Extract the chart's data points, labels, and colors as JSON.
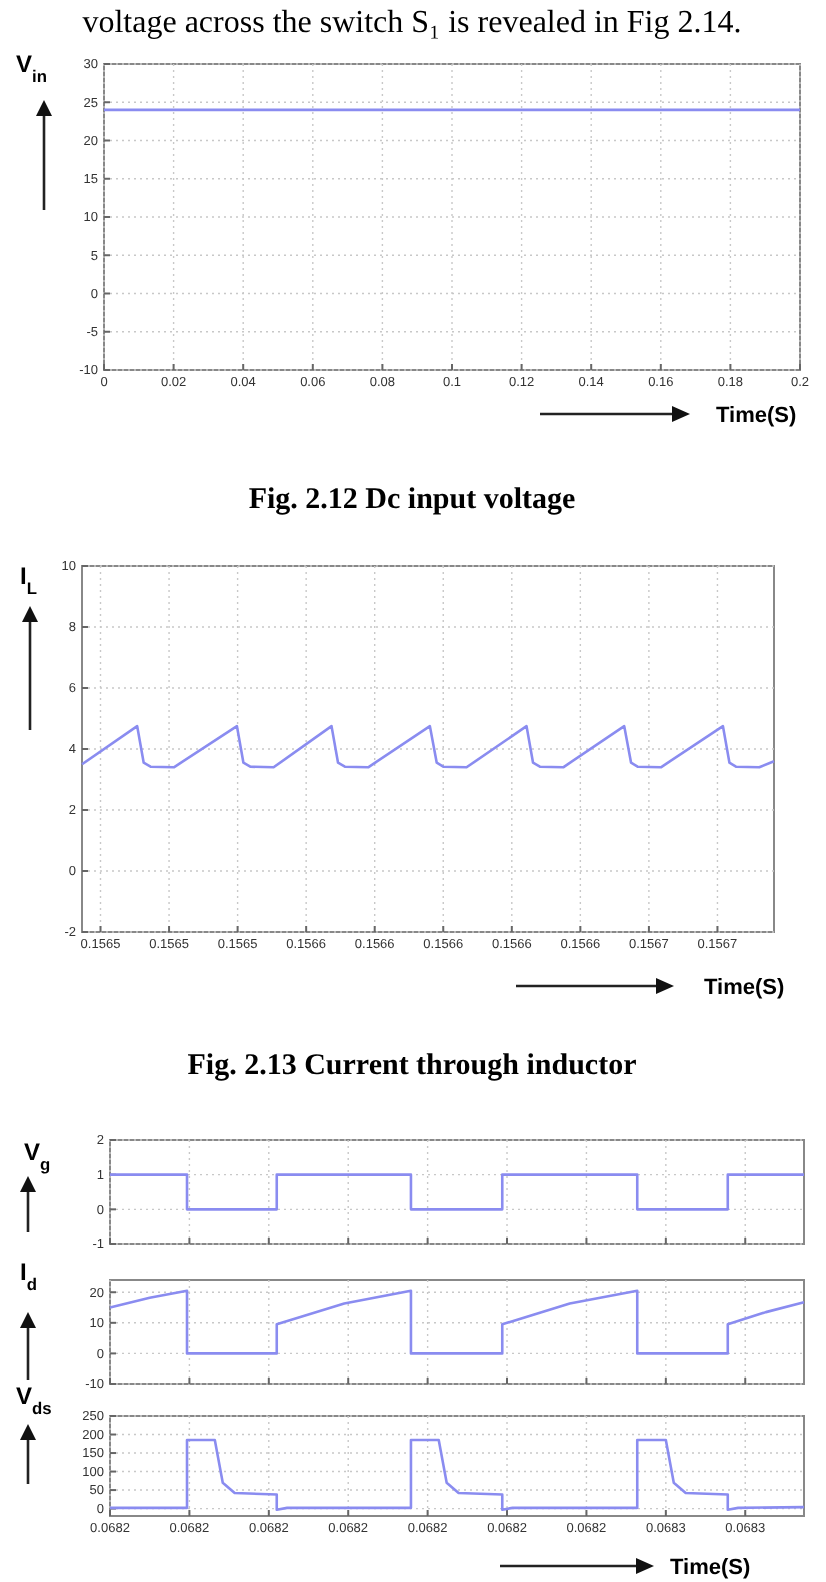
{
  "chart_data": [
    {
      "type": "line",
      "ylabel": "V$_{in}$",
      "xlabel": "Time(S)",
      "annotations": [
        "voltage across the switch S₁ is revealed in Fig 2.14.",
        "Fig. 2.12 Dc input voltage"
      ],
      "x": [
        0,
        0.2
      ],
      "values": [
        24,
        24
      ],
      "color": "#8a8cf0",
      "xlim": [
        0,
        0.2
      ],
      "ylim": [
        -10,
        30
      ],
      "xticks": [
        0,
        0.02,
        0.04,
        0.06,
        0.08,
        0.1,
        0.12,
        0.14,
        0.16,
        0.18,
        0.2
      ],
      "yticks": [
        -10,
        -5,
        0,
        5,
        10,
        15,
        20,
        25,
        30
      ],
      "grid": true
    },
    {
      "type": "line",
      "ylabel": "I$_{L}$",
      "xlabel": "Time(S)",
      "annotations": [
        "Fig. 2.13 Current through inductor"
      ],
      "x": [
        0.1564846,
        0.1565007,
        0.1565026,
        0.1565046,
        0.1565114,
        0.1565298,
        0.1565317,
        0.1565337,
        0.1565405,
        0.1565574,
        0.1565593,
        0.1565613,
        0.1565681,
        0.1565861,
        0.1565881,
        0.15659,
        0.1565968,
        0.1566143,
        0.1566162,
        0.1566182,
        0.156625,
        0.1566428,
        0.1566448,
        0.1566467,
        0.1566535,
        0.1566716,
        0.1566735,
        0.1566754,
        0.1566822,
        0.1566865
      ],
      "values": [
        3.5,
        4.75,
        3.55,
        3.42,
        3.4,
        4.75,
        3.55,
        3.42,
        3.4,
        4.75,
        3.55,
        3.42,
        3.4,
        4.75,
        3.55,
        3.42,
        3.4,
        4.75,
        3.55,
        3.42,
        3.4,
        4.75,
        3.55,
        3.42,
        3.4,
        4.75,
        3.55,
        3.42,
        3.4,
        3.6
      ],
      "color": "#8a8cf0",
      "xlim": [
        0.1564846,
        0.1566865
      ],
      "ylim": [
        -2,
        10
      ],
      "xticks": [
        {
          "value": 0.15649,
          "label": "0.1565"
        },
        {
          "value": 0.15651,
          "label": "0.1565"
        },
        {
          "value": 0.15653,
          "label": "0.1565"
        },
        {
          "value": 0.15655,
          "label": "0.1566"
        },
        {
          "value": 0.15657,
          "label": "0.1566"
        },
        {
          "value": 0.15659,
          "label": "0.1566"
        },
        {
          "value": 0.15661,
          "label": "0.1566"
        },
        {
          "value": 0.15663,
          "label": "0.1566"
        },
        {
          "value": 0.15665,
          "label": "0.1567"
        },
        {
          "value": 0.15667,
          "label": "0.1567"
        }
      ],
      "yticks": [
        -2,
        0,
        2,
        4,
        6,
        8,
        10
      ],
      "grid": true
    },
    {
      "type": "line",
      "ylabel": "V$_{g}$",
      "tick_labels": "y",
      "x": [
        0.06818,
        0.0681897,
        0.0681897,
        0.068201,
        0.068201,
        0.0682179,
        0.0682179,
        0.0682294,
        0.0682294,
        0.0682464,
        0.0682464,
        0.0682578,
        0.0682578,
        0.0682674
      ],
      "values": [
        1,
        1,
        0,
        0,
        1,
        1,
        0,
        0,
        1,
        1,
        0,
        0,
        1,
        1
      ],
      "color": "#8a8cf0",
      "xlim": [
        0.06818,
        0.0682674
      ],
      "ylim": [
        -1,
        2
      ],
      "xticks": [
        0.06818,
        0.06819,
        0.0682,
        0.06821,
        0.06822,
        0.06823,
        0.06824,
        0.06825,
        0.06826
      ],
      "yticks": [
        -1,
        0,
        1,
        2
      ],
      "grid": true
    },
    {
      "type": "line",
      "ylabel": "I$_{d}$",
      "tick_labels": "y",
      "x": [
        0.06818,
        0.068185,
        0.0681897,
        0.0681897,
        0.068201,
        0.068201,
        0.0682095,
        0.0682179,
        0.0682179,
        0.0682294,
        0.0682294,
        0.0682379,
        0.0682464,
        0.0682464,
        0.0682578,
        0.0682578,
        0.0682626,
        0.0682674
      ],
      "values": [
        15,
        18.2,
        20.5,
        0,
        0,
        9.5,
        16.3,
        20.5,
        0,
        0,
        9.5,
        16.3,
        20.5,
        0,
        0,
        9.5,
        13.5,
        16.7
      ],
      "color": "#8a8cf0",
      "xlim": [
        0.06818,
        0.0682674
      ],
      "ylim": [
        -10,
        24
      ],
      "xticks": [
        0.06818,
        0.06819,
        0.0682,
        0.06821,
        0.06822,
        0.06823,
        0.06824,
        0.06825,
        0.06826
      ],
      "yticks": [
        -10,
        0,
        10,
        20
      ],
      "grid": true
    },
    {
      "type": "line",
      "ylabel": "V$_{ds}$",
      "xlabel": "Time(S)",
      "x": [
        0.06818,
        0.0681897,
        0.0681897,
        0.0681932,
        0.0681942,
        0.0681957,
        0.068201,
        0.068201,
        0.0682023,
        0.0682179,
        0.0682179,
        0.0682214,
        0.0682224,
        0.0682239,
        0.0682294,
        0.0682294,
        0.0682307,
        0.0682464,
        0.0682464,
        0.06825,
        0.068251,
        0.0682525,
        0.0682578,
        0.0682578,
        0.0682591,
        0.0682674
      ],
      "values": [
        2,
        2,
        185,
        185,
        70,
        42,
        38,
        -3,
        2,
        2,
        185,
        185,
        70,
        42,
        38,
        -3,
        2,
        2,
        185,
        185,
        70,
        42,
        38,
        -3,
        2,
        4
      ],
      "color": "#8a8cf0",
      "xlim": [
        0.06818,
        0.0682674
      ],
      "ylim": [
        -20,
        250
      ],
      "xticks": [
        {
          "value": 0.06818,
          "label": "0.0682"
        },
        {
          "value": 0.06819,
          "label": "0.0682"
        },
        {
          "value": 0.0682,
          "label": "0.0682"
        },
        {
          "value": 0.06821,
          "label": "0.0682"
        },
        {
          "value": 0.06822,
          "label": "0.0682"
        },
        {
          "value": 0.06823,
          "label": "0.0682"
        },
        {
          "value": 0.06824,
          "label": "0.0682"
        },
        {
          "value": 0.06825,
          "label": "0.0683"
        },
        {
          "value": 0.06826,
          "label": "0.0683"
        }
      ],
      "yticks": [
        0,
        50,
        100,
        150,
        200,
        250
      ],
      "grid": true
    }
  ]
}
